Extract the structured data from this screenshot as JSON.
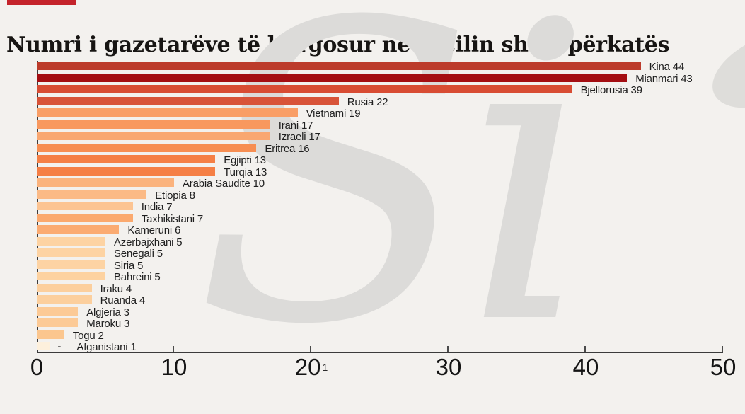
{
  "page": {
    "background_color": "#f3f1ee",
    "accent_bar_color": "#c4232b"
  },
  "header": {
    "title": "Numri i gazetarëve të burgosur në secilin shtet përkatës"
  },
  "watermark": {
    "text": "Si",
    "color": "#dcdbd9"
  },
  "chart_data": {
    "type": "bar",
    "orientation": "horizontal",
    "title": "Numri i gazetarëve të burgosur në secilin shtet përkatës",
    "xlabel": "",
    "ylabel": "",
    "xlim": [
      0,
      50
    ],
    "x_ticks": [
      0,
      10,
      20,
      30,
      40,
      50
    ],
    "grid": false,
    "legend": false,
    "bar_label_format": "{category} {value}",
    "categories": [
      "Kina",
      "Mianmari",
      "Bjellorusia",
      "Rusia",
      "Vietnami",
      "Irani",
      "Izraeli",
      "Eritrea",
      "Egjipti",
      "Turqia",
      "Arabia Saudite",
      "Etiopia",
      "India",
      "Taxhikistani",
      "Kameruni",
      "Azerbajxhani",
      "Senegali",
      "Siria",
      "Bahreini",
      "Iraku",
      "Ruanda",
      "Algjeria",
      "Maroku",
      "Togu",
      "Afganistani"
    ],
    "values": [
      44,
      43,
      39,
      22,
      19,
      17,
      17,
      16,
      13,
      13,
      10,
      8,
      7,
      7,
      6,
      5,
      5,
      5,
      5,
      4,
      4,
      3,
      3,
      2,
      1
    ],
    "row_labels": [
      "Kina 44",
      "Mianmari 43",
      "Bjellorusia 39",
      "Rusia 22",
      "Vietnami 19",
      "Irani 17",
      "Izraeli 17",
      "Eritrea 16",
      "Egjipti 13",
      "Turqia 13",
      "Arabia Saudite 10",
      "Etiopia 8",
      "India 7",
      "Taxhikistani 7",
      "Kameruni 6",
      "Azerbajxhani 5",
      "Senegali 5",
      "Siria 5",
      "Bahreini 5",
      "Iraku 4",
      "Ruanda 4",
      "Algjeria 3",
      "Maroku 3",
      "Togu 2",
      "Afganistani 1"
    ],
    "bar_colors": [
      "#bc3b2b",
      "#a40e12",
      "#d84c33",
      "#d85338",
      "#f99e66",
      "#f8985e",
      "#f9a771",
      "#f78e52",
      "#f57f45",
      "#f57f45",
      "#fbb37d",
      "#fbba86",
      "#fcc492",
      "#fba96e",
      "#fbab72",
      "#fdd3a3",
      "#fdd3a3",
      "#fdd3a3",
      "#fdd2a0",
      "#fccf9d",
      "#fccf9d",
      "#fcca96",
      "#fcca96",
      "#fbc68e",
      "#fdf0dc"
    ],
    "annotations": [
      {
        "text": "-",
        "position": "after-bar",
        "row_index": 24
      },
      {
        "text": "1",
        "position": "after-x-tick-label",
        "tick_value": 20
      }
    ]
  },
  "x_axis": {
    "tick_labels": [
      "0",
      "10",
      "20",
      "30",
      "40",
      "50"
    ],
    "footnote_marker": "1",
    "footnote_after_tick": "20"
  }
}
